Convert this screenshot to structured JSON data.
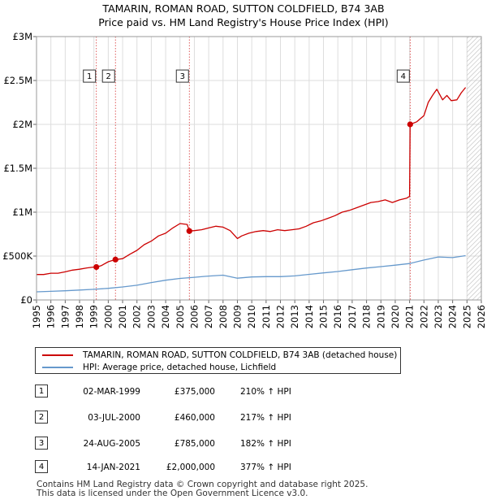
{
  "title": {
    "line1": "TAMARIN, ROMAN ROAD, SUTTON COLDFIELD, B74 3AB",
    "line2": "Price paid vs. HM Land Registry's House Price Index (HPI)"
  },
  "colors": {
    "property": "#cc0000",
    "hpi": "#6699cc",
    "marker_line": "#cc0000",
    "future_hatch": "#bbbbbb",
    "grid": "#dddddd"
  },
  "chart_data": {
    "type": "line",
    "title": "Price paid vs. HM Land Registry's House Price Index (HPI)",
    "xlabel": "",
    "ylabel": "",
    "xlim": [
      1995,
      2026
    ],
    "ylim": [
      0,
      3000000
    ],
    "x_ticks": [
      "1995",
      "1996",
      "1997",
      "1998",
      "1999",
      "2000",
      "2001",
      "2002",
      "2003",
      "2004",
      "2005",
      "2006",
      "2007",
      "2008",
      "2009",
      "2010",
      "2011",
      "2012",
      "2013",
      "2014",
      "2015",
      "2016",
      "2017",
      "2018",
      "2019",
      "2020",
      "2021",
      "2022",
      "2023",
      "2024",
      "2025",
      "2026"
    ],
    "y_ticks": [
      {
        "value": 0,
        "label": "£0"
      },
      {
        "value": 500000,
        "label": "£500K"
      },
      {
        "value": 1000000,
        "label": "£1M"
      },
      {
        "value": 1500000,
        "label": "£1.5M"
      },
      {
        "value": 2000000,
        "label": "£2M"
      },
      {
        "value": 2500000,
        "label": "£2.5M"
      },
      {
        "value": 3000000,
        "label": "£3M"
      }
    ],
    "grid": true,
    "future_hatch_from": 2025.0,
    "series": [
      {
        "name": "TAMARIN, ROMAN ROAD, SUTTON COLDFIELD, B74 3AB (detached house)",
        "color": "#cc0000",
        "x": [
          1995.0,
          1995.5,
          1996.0,
          1996.5,
          1997.0,
          1997.5,
          1998.0,
          1998.5,
          1999.0,
          1999.17,
          1999.5,
          2000.0,
          2000.5,
          2001.0,
          2001.5,
          2002.0,
          2002.5,
          2003.0,
          2003.5,
          2004.0,
          2004.5,
          2005.0,
          2005.5,
          2005.65,
          2006.0,
          2006.5,
          2007.0,
          2007.5,
          2008.0,
          2008.5,
          2009.0,
          2009.3,
          2009.8,
          2010.3,
          2010.8,
          2011.3,
          2011.8,
          2012.3,
          2012.8,
          2013.3,
          2013.8,
          2014.3,
          2014.8,
          2015.3,
          2015.8,
          2016.3,
          2016.8,
          2017.3,
          2017.8,
          2018.3,
          2018.8,
          2019.3,
          2019.8,
          2020.3,
          2020.8,
          2021.0,
          2021.04,
          2021.5,
          2022.0,
          2022.3,
          2022.6,
          2022.9,
          2023.3,
          2023.6,
          2023.9,
          2024.3,
          2024.6,
          2024.9
        ],
        "y": [
          290000,
          290000,
          305000,
          305000,
          320000,
          340000,
          350000,
          365000,
          375000,
          375000,
          390000,
          435000,
          460000,
          470000,
          520000,
          565000,
          630000,
          670000,
          730000,
          760000,
          820000,
          870000,
          860000,
          785000,
          790000,
          800000,
          820000,
          840000,
          830000,
          790000,
          700000,
          730000,
          760000,
          780000,
          790000,
          780000,
          800000,
          790000,
          800000,
          810000,
          840000,
          880000,
          900000,
          930000,
          960000,
          1000000,
          1020000,
          1050000,
          1080000,
          1110000,
          1120000,
          1140000,
          1110000,
          1140000,
          1160000,
          1180000,
          2000000,
          2030000,
          2100000,
          2250000,
          2330000,
          2400000,
          2280000,
          2330000,
          2270000,
          2280000,
          2360000,
          2420000
        ]
      },
      {
        "name": "HPI: Average price, detached house, Lichfield",
        "color": "#6699cc",
        "x": [
          1995.0,
          1996.0,
          1997.0,
          1998.0,
          1999.0,
          2000.0,
          2001.0,
          2002.0,
          2003.0,
          2004.0,
          2005.0,
          2006.0,
          2007.0,
          2008.0,
          2009.0,
          2010.0,
          2011.0,
          2012.0,
          2013.0,
          2014.0,
          2015.0,
          2016.0,
          2017.0,
          2018.0,
          2019.0,
          2020.0,
          2021.0,
          2022.0,
          2023.0,
          2024.0,
          2024.9
        ],
        "y": [
          93000,
          98000,
          105000,
          113000,
          121000,
          132000,
          148000,
          168000,
          198000,
          225000,
          245000,
          258000,
          272000,
          282000,
          248000,
          262000,
          266000,
          266000,
          274000,
          292000,
          308000,
          324000,
          344000,
          364000,
          380000,
          396000,
          415000,
          455000,
          490000,
          482000,
          505000
        ]
      }
    ],
    "sales": [
      {
        "num": "1",
        "x": 1999.17,
        "value": 375000
      },
      {
        "num": "2",
        "x": 2000.5,
        "value": 460000
      },
      {
        "num": "3",
        "x": 2005.65,
        "value": 785000
      },
      {
        "num": "4",
        "x": 2021.04,
        "value": 2000000
      }
    ]
  },
  "legend": {
    "property_label": "TAMARIN, ROMAN ROAD, SUTTON COLDFIELD, B74 3AB (detached house)",
    "hpi_label": "HPI: Average price, detached house, Lichfield"
  },
  "sales_table": [
    {
      "num": "1",
      "date": "02-MAR-1999",
      "price": "£375,000",
      "hpi": "210% ↑ HPI"
    },
    {
      "num": "2",
      "date": "03-JUL-2000",
      "price": "£460,000",
      "hpi": "217% ↑ HPI"
    },
    {
      "num": "3",
      "date": "24-AUG-2005",
      "price": "£785,000",
      "hpi": "182% ↑ HPI"
    },
    {
      "num": "4",
      "date": "14-JAN-2021",
      "price": "£2,000,000",
      "hpi": "377% ↑ HPI"
    }
  ],
  "footer": {
    "line1": "Contains HM Land Registry data © Crown copyright and database right 2025.",
    "line2": "This data is licensed under the Open Government Licence v3.0."
  }
}
